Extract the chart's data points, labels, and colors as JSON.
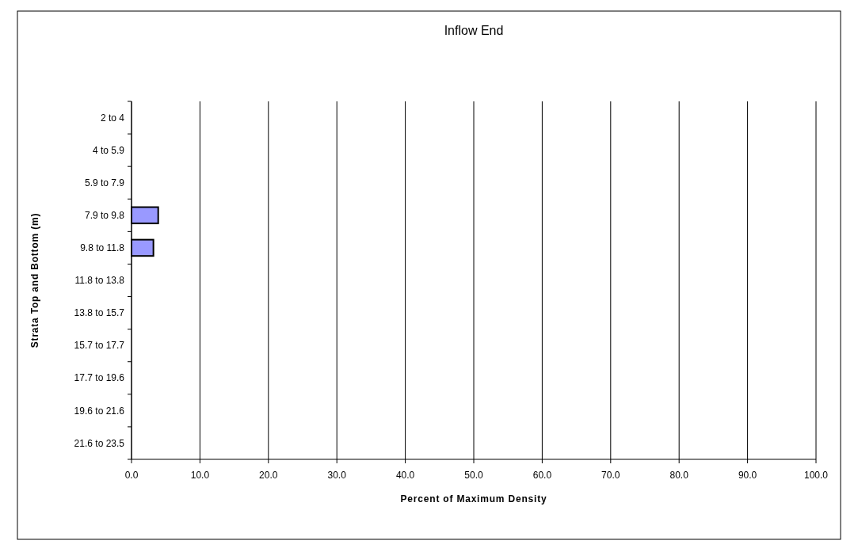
{
  "chart_data": {
    "type": "bar",
    "orientation": "horizontal",
    "title": "Inflow End",
    "xlabel": "Percent of Maximum Density",
    "ylabel": "Strata Top and Bottom (m)",
    "categories": [
      "2 to 4",
      "4 to 5.9",
      "5.9 to 7.9",
      "7.9 to 9.8",
      "9.8 to 11.8",
      "11.8 to 13.8",
      "13.8 to 15.7",
      "15.7 to 17.7",
      "17.7 to 19.6",
      "19.6 to 21.6",
      "21.6 to 23.5"
    ],
    "values": [
      null,
      null,
      null,
      3.9,
      3.2,
      null,
      null,
      null,
      null,
      null,
      null
    ],
    "color": "#9999ff",
    "xlim": [
      0,
      100
    ],
    "xticks": [
      {
        "value": 0,
        "label": "0.0"
      },
      {
        "value": 10,
        "label": "10.0"
      },
      {
        "value": 20,
        "label": "20.0"
      },
      {
        "value": 30,
        "label": "30.0"
      },
      {
        "value": 40,
        "label": "40.0"
      },
      {
        "value": 50,
        "label": "50.0"
      },
      {
        "value": 60,
        "label": "60.0"
      },
      {
        "value": 70,
        "label": "70.0"
      },
      {
        "value": 80,
        "label": "80.0"
      },
      {
        "value": 90,
        "label": "90.0"
      },
      {
        "value": 100,
        "label": "100.0"
      }
    ],
    "grid": "x"
  }
}
